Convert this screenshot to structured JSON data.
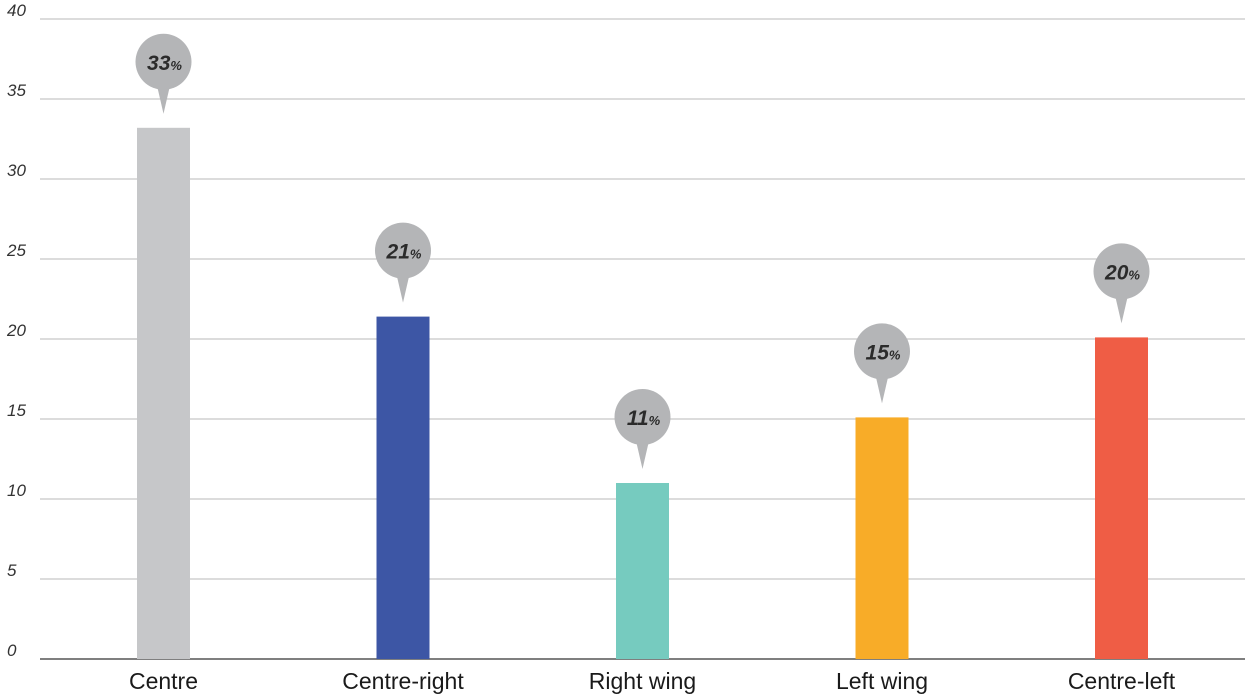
{
  "chart_data": {
    "type": "bar",
    "categories": [
      "Centre",
      "Centre-right",
      "Right wing",
      "Left wing",
      "Centre-left"
    ],
    "values": [
      33.2,
      21.4,
      11.0,
      15.1,
      20.1
    ],
    "data_labels": [
      "33",
      "21",
      "11",
      "15",
      "20"
    ],
    "data_label_unit": "%",
    "colors": [
      "#c6c7c9",
      "#3d56a5",
      "#76cbbf",
      "#f8ac28",
      "#ef5d45"
    ],
    "label_bubble_color": "#b4b5b7",
    "ylim": [
      0,
      40
    ],
    "yticks": [
      0,
      5,
      10,
      15,
      20,
      25,
      30,
      35,
      40
    ],
    "grid": true,
    "legend": "none",
    "title": "",
    "xlabel": "",
    "ylabel": ""
  }
}
